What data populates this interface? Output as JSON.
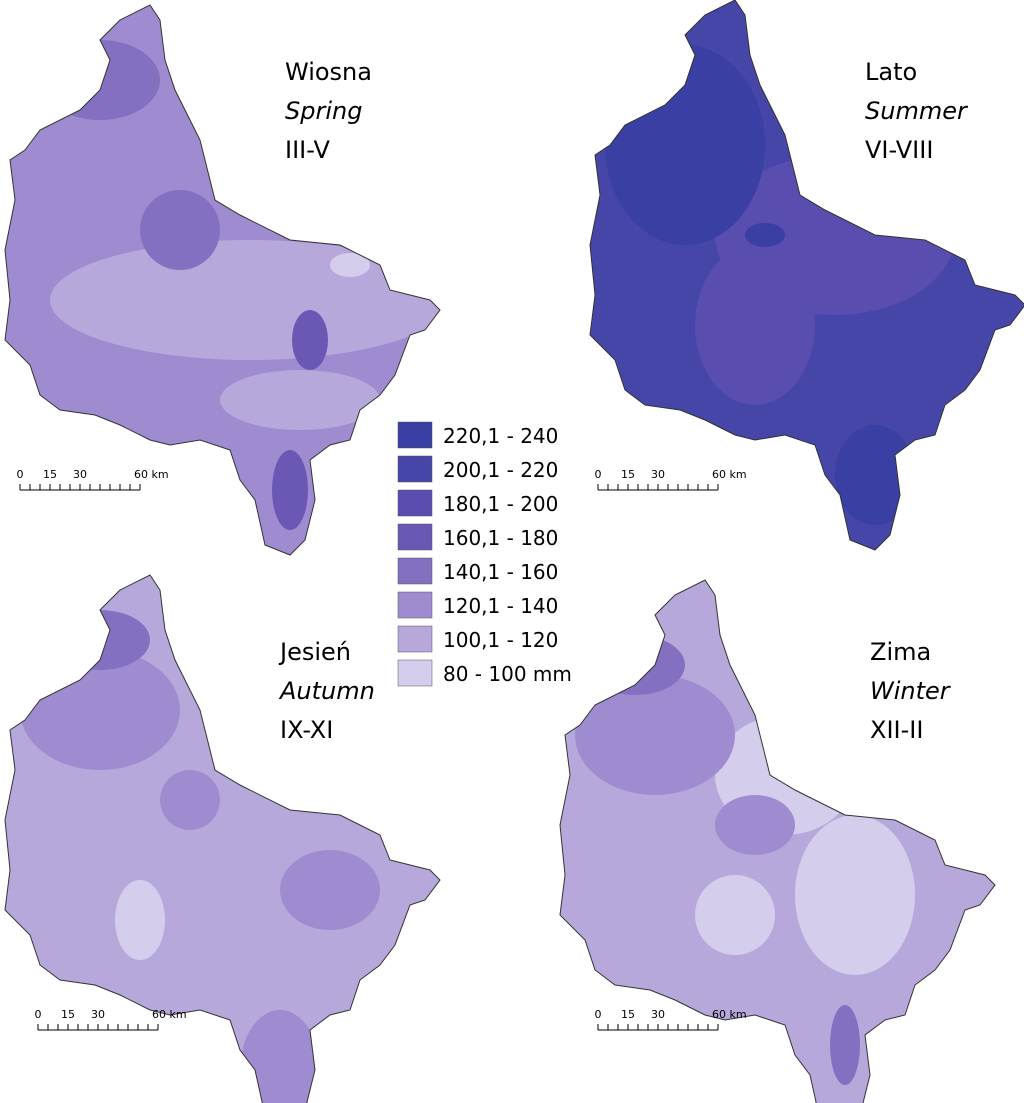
{
  "maps": [
    {
      "title_pl": "Wiosna",
      "title_en": "Spring",
      "months": "III-V",
      "scale_labels": [
        "0",
        "15",
        "30",
        "60 km"
      ]
    },
    {
      "title_pl": "Lato",
      "title_en": "Summer",
      "months": "VI-VIII",
      "scale_labels": [
        "0",
        "15",
        "30",
        "60 km"
      ]
    },
    {
      "title_pl": "Jesień",
      "title_en": "Autumn",
      "months": "IX-XI",
      "scale_labels": [
        "0",
        "15",
        "30",
        "60 km"
      ]
    },
    {
      "title_pl": "Zima",
      "title_en": "Winter",
      "months": "XII-II",
      "scale_labels": [
        "0",
        "15",
        "30",
        "60 km"
      ]
    }
  ],
  "legend": [
    {
      "label": "220,1 - 240",
      "color": "#3a3fa3"
    },
    {
      "label": "200,1 - 220",
      "color": "#4546a8"
    },
    {
      "label": "180,1 - 200",
      "color": "#5a4db0"
    },
    {
      "label": "160,1 - 180",
      "color": "#6b58b5"
    },
    {
      "label": "140,1 - 160",
      "color": "#8470c0"
    },
    {
      "label": "120,1 - 140",
      "color": "#9f8bcf"
    },
    {
      "label": "100,1 - 120",
      "color": "#b7a8db"
    },
    {
      "label": "80 - 100 mm",
      "color": "#d5cdec"
    }
  ]
}
